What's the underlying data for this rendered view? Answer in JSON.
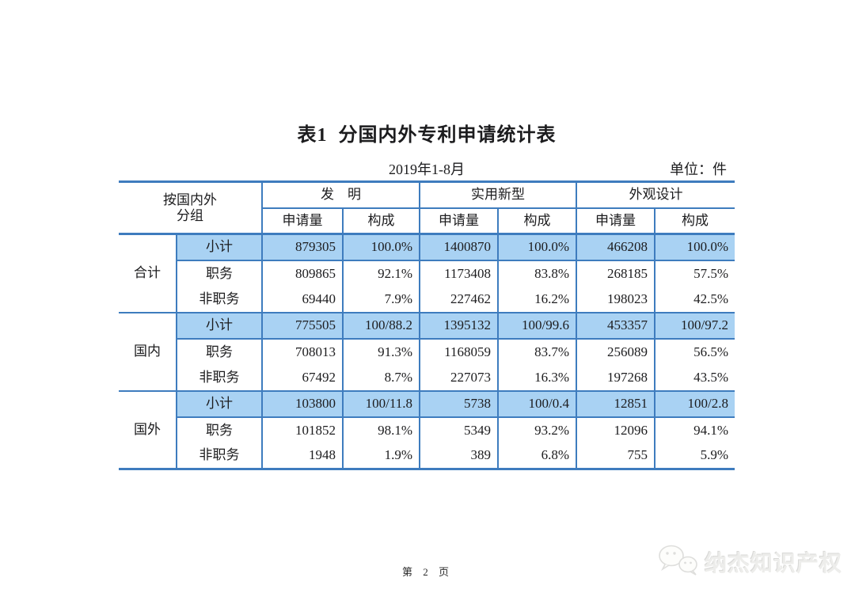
{
  "page": {
    "title": "表1  分国内外专利申请统计表",
    "period": "2019年1-8月",
    "unit_label": "单位：件",
    "footer_page": "第 2 页",
    "watermark_text": "纳杰知识产权",
    "watermark_icon": "wechat-icon"
  },
  "table": {
    "group_header_line1": "按国内外",
    "group_header_line2": "分组",
    "col_groups": [
      "发　明",
      "实用新型",
      "外观设计"
    ],
    "sub_header_qty": "申请量",
    "sub_header_comp": "构成",
    "sections": [
      {
        "group": "合计",
        "rows": [
          {
            "label": "小计",
            "highlight": true,
            "values": [
              "879305",
              "100.0%",
              "1400870",
              "100.0%",
              "466208",
              "100.0%"
            ]
          },
          {
            "label": "职务",
            "highlight": false,
            "values": [
              "809865",
              "92.1%",
              "1173408",
              "83.8%",
              "268185",
              "57.5%"
            ]
          },
          {
            "label": "非职务",
            "highlight": false,
            "values": [
              "69440",
              "7.9%",
              "227462",
              "16.2%",
              "198023",
              "42.5%"
            ]
          }
        ]
      },
      {
        "group": "国内",
        "rows": [
          {
            "label": "小计",
            "highlight": true,
            "values": [
              "775505",
              "100/88.2",
              "1395132",
              "100/99.6",
              "453357",
              "100/97.2"
            ]
          },
          {
            "label": "职务",
            "highlight": false,
            "values": [
              "708013",
              "91.3%",
              "1168059",
              "83.7%",
              "256089",
              "56.5%"
            ]
          },
          {
            "label": "非职务",
            "highlight": false,
            "values": [
              "67492",
              "8.7%",
              "227073",
              "16.3%",
              "197268",
              "43.5%"
            ]
          }
        ]
      },
      {
        "group": "国外",
        "rows": [
          {
            "label": "小计",
            "highlight": true,
            "values": [
              "103800",
              "100/11.8",
              "5738",
              "100/0.4",
              "12851",
              "100/2.8"
            ]
          },
          {
            "label": "职务",
            "highlight": false,
            "values": [
              "101852",
              "98.1%",
              "5349",
              "93.2%",
              "12096",
              "94.1%"
            ]
          },
          {
            "label": "非职务",
            "highlight": false,
            "values": [
              "1948",
              "1.9%",
              "389",
              "6.8%",
              "755",
              "5.9%"
            ]
          }
        ]
      }
    ]
  },
  "colors": {
    "table_border": "#3e7cbe",
    "row_highlight": "#a9d2f3",
    "text": "#1c1c1e",
    "watermark_gray": "#ededeb"
  }
}
